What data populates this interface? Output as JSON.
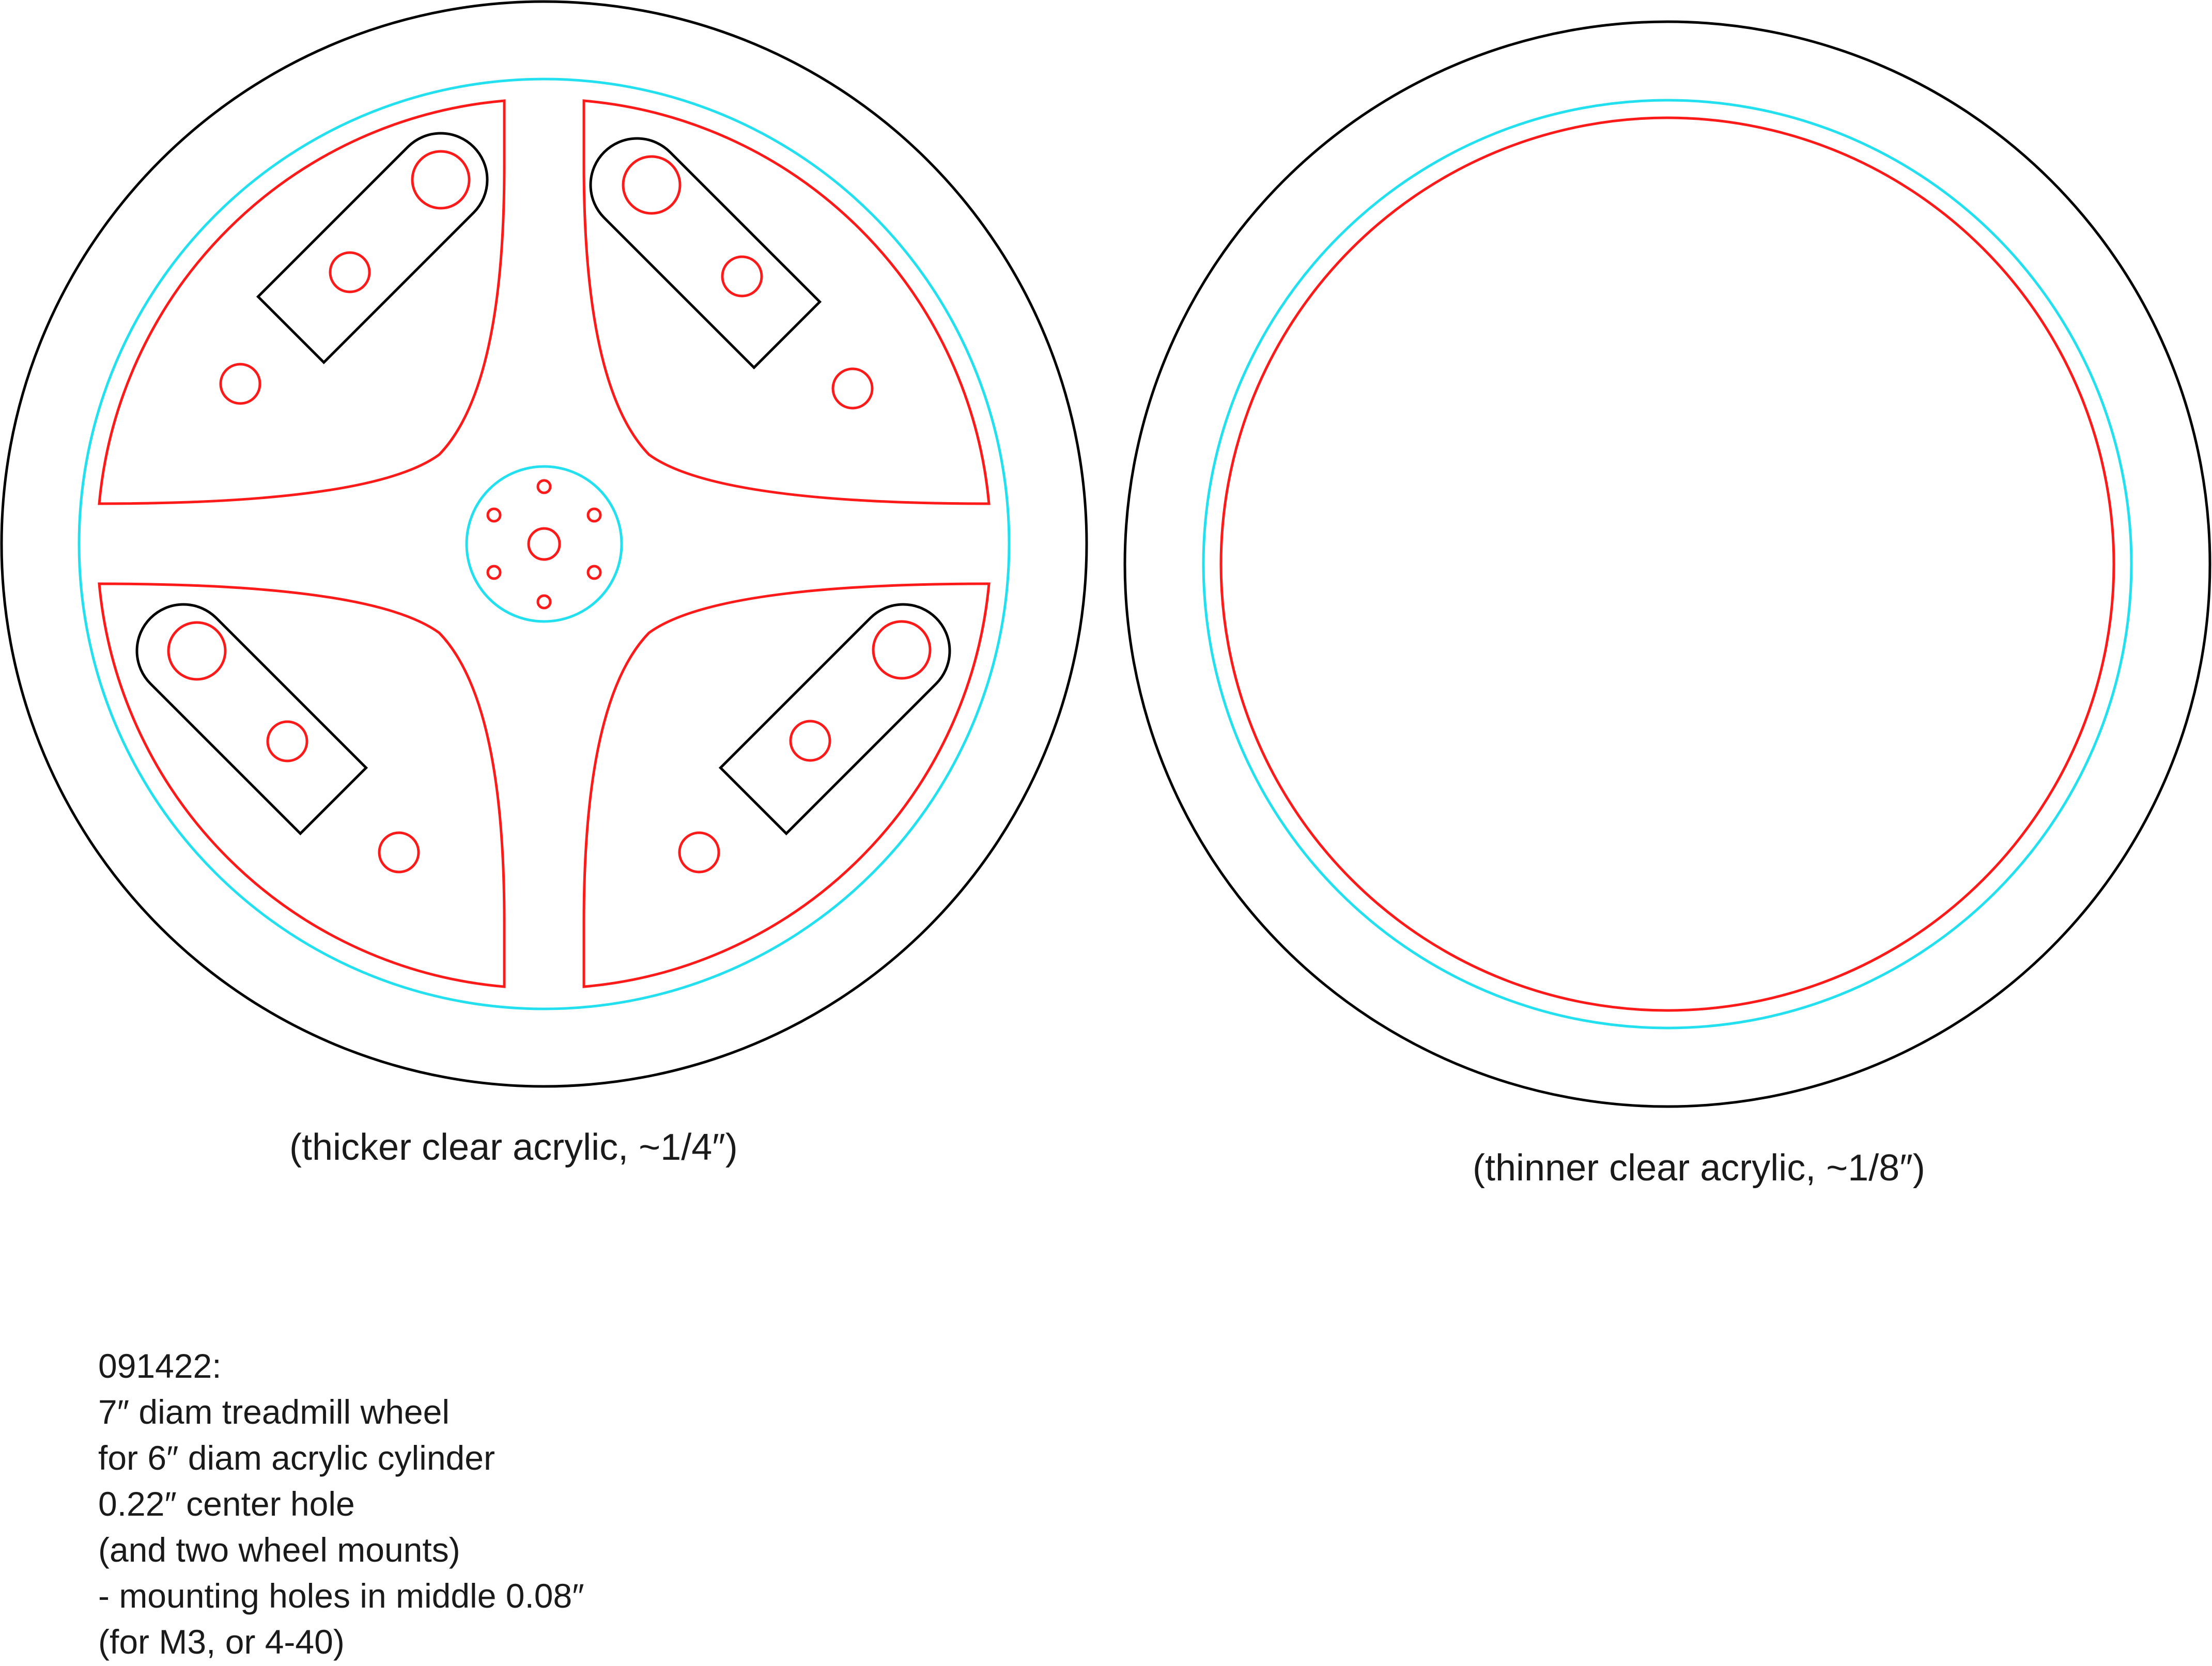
{
  "captions": {
    "left": "(thicker clear acrylic, ~1/4″)",
    "right": "(thinner clear acrylic, ~1/8″)"
  },
  "notes": [
    "091422:",
    "7″ diam treadmill wheel",
    "for 6″ diam acrylic cylinder",
    "0.22″ center hole",
    "(and two wheel mounts)",
    "- mounting holes in middle 0.08″",
    "(for M3, or 4-40)"
  ],
  "colors": {
    "outline": "#000000",
    "cut_red": "#ff1a1a",
    "guide_cyan": "#22e0f0"
  }
}
